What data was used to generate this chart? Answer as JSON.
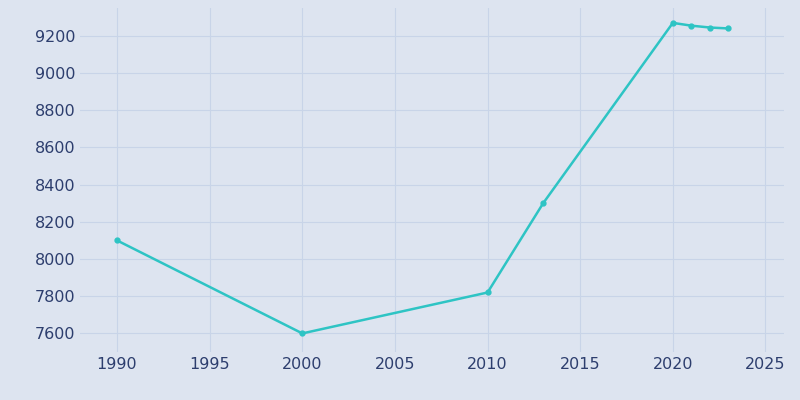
{
  "years": [
    1990,
    2000,
    2010,
    2013,
    2020,
    2021,
    2022,
    2023
  ],
  "population": [
    8100,
    7600,
    7820,
    8300,
    9270,
    9255,
    9245,
    9240
  ],
  "line_color": "#2ec4c4",
  "marker": "o",
  "marker_size": 3.5,
  "line_width": 1.8,
  "bg_color": "#dde4f0",
  "fig_bg_color": "#dde4f0",
  "xlim": [
    1988,
    2026
  ],
  "ylim": [
    7500,
    9350
  ],
  "yticks": [
    7600,
    7800,
    8000,
    8200,
    8400,
    8600,
    8800,
    9000,
    9200
  ],
  "xticks": [
    1990,
    1995,
    2000,
    2005,
    2010,
    2015,
    2020,
    2025
  ],
  "grid_color": "#c8d4e8",
  "tick_label_color": "#2d3e6e",
  "tick_fontsize": 11.5
}
